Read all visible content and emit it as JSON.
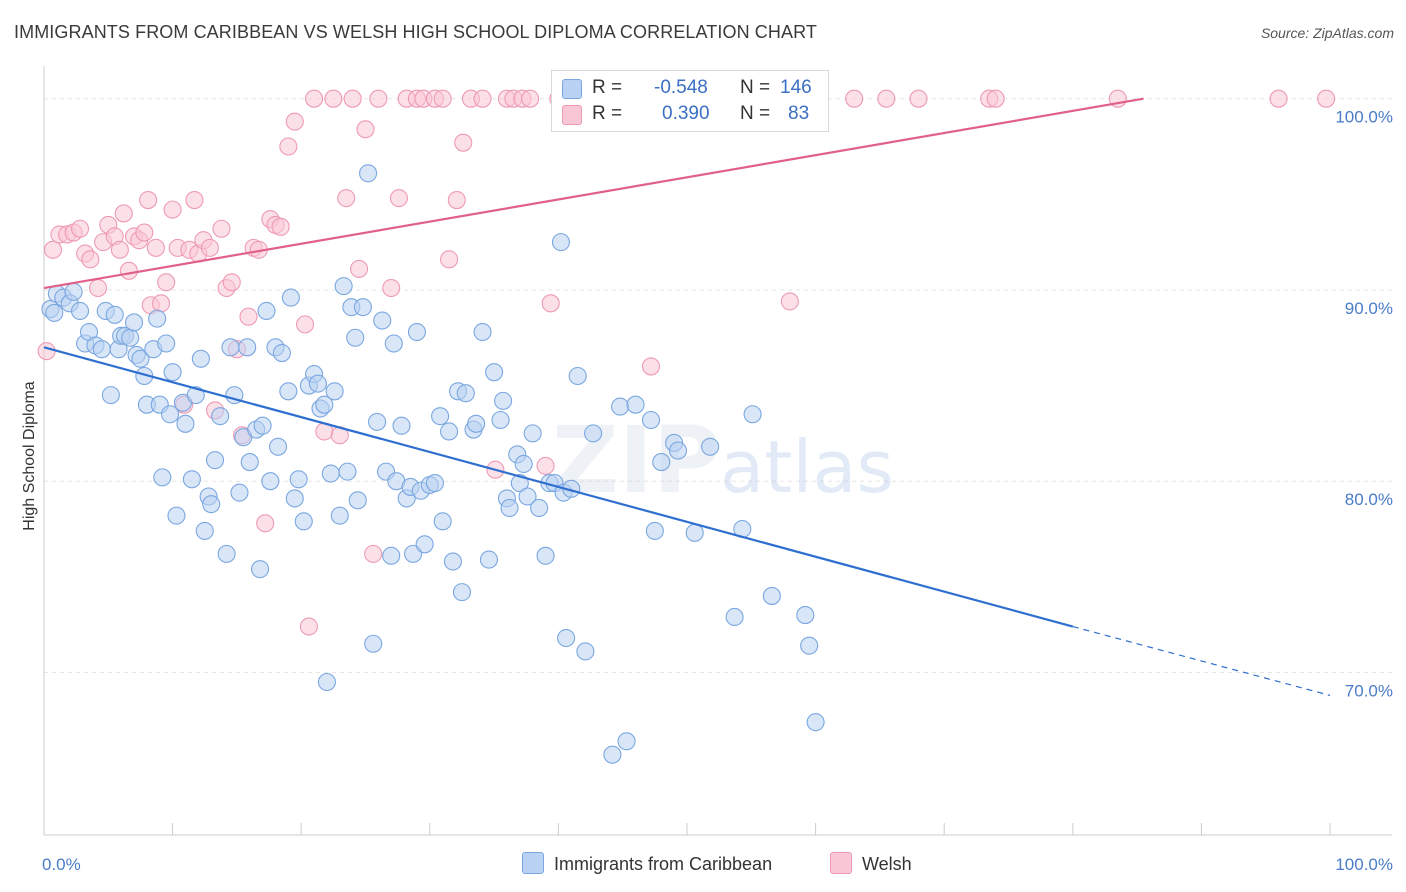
{
  "header": {
    "title": "IMMIGRANTS FROM CARIBBEAN VS WELSH HIGH SCHOOL DIPLOMA CORRELATION CHART",
    "source": "Source: ZipAtlas.com"
  },
  "watermark": {
    "zip": "ZIP",
    "atlas": "atlas"
  },
  "legend": {
    "rows": [
      {
        "r_label": "R =",
        "r_value": "-0.548",
        "n_label": "N =",
        "n_value": "146",
        "color": "#aac8f0"
      },
      {
        "r_label": "R =",
        "r_value": "0.390",
        "n_label": "N =",
        "n_value": "83",
        "color": "#f7b8cb"
      }
    ]
  },
  "chart_data": {
    "type": "scatter",
    "title": "IMMIGRANTS FROM CARIBBEAN VS WELSH HIGH SCHOOL DIPLOMA CORRELATION CHART",
    "xlabel": "",
    "ylabel": "High School Diploma",
    "xlim": [
      0,
      100
    ],
    "ylim": [
      61.5,
      101.5
    ],
    "x_tick_labels": [
      "0.0%",
      "100.0%"
    ],
    "y_ticks": [
      {
        "value": 70,
        "label": "70.0%"
      },
      {
        "value": 80,
        "label": "80.0%"
      },
      {
        "value": 90,
        "label": "90.0%"
      },
      {
        "value": 100,
        "label": "100.0%"
      }
    ],
    "grid": true,
    "legend_position": "bottom",
    "series": [
      {
        "name": "Immigrants from Caribbean",
        "color": "#7aa7e0",
        "fill": "#b9d2f3",
        "trend": {
          "x": [
            0,
            80
          ],
          "y": [
            87.0,
            72.4
          ],
          "dashed_to": [
            100,
            68.8
          ],
          "color": "#2f6fd0"
        },
        "points": [
          [
            0.5,
            89.0
          ],
          [
            0.8,
            88.8
          ],
          [
            1.0,
            89.8
          ],
          [
            1.5,
            89.6
          ],
          [
            2.0,
            89.3
          ],
          [
            2.3,
            89.9
          ],
          [
            2.8,
            88.9
          ],
          [
            3.2,
            87.2
          ],
          [
            3.5,
            87.8
          ],
          [
            4.0,
            87.1
          ],
          [
            4.5,
            86.9
          ],
          [
            4.8,
            88.9
          ],
          [
            5.2,
            84.5
          ],
          [
            5.5,
            88.7
          ],
          [
            5.8,
            86.9
          ],
          [
            6.0,
            87.6
          ],
          [
            6.3,
            87.6
          ],
          [
            6.7,
            87.5
          ],
          [
            7.0,
            88.3
          ],
          [
            7.2,
            86.6
          ],
          [
            7.5,
            86.4
          ],
          [
            7.8,
            85.5
          ],
          [
            8.0,
            84.0
          ],
          [
            8.5,
            86.9
          ],
          [
            8.8,
            88.5
          ],
          [
            9.0,
            84.0
          ],
          [
            9.2,
            80.2
          ],
          [
            9.5,
            87.2
          ],
          [
            9.8,
            83.5
          ],
          [
            10.0,
            85.7
          ],
          [
            10.3,
            78.2
          ],
          [
            10.8,
            84.1
          ],
          [
            11.0,
            83.0
          ],
          [
            11.5,
            80.1
          ],
          [
            11.8,
            84.5
          ],
          [
            12.2,
            86.4
          ],
          [
            12.5,
            77.4
          ],
          [
            12.8,
            79.2
          ],
          [
            13.0,
            78.8
          ],
          [
            13.3,
            81.1
          ],
          [
            13.7,
            83.4
          ],
          [
            14.2,
            76.2
          ],
          [
            14.5,
            87.0
          ],
          [
            14.8,
            84.5
          ],
          [
            15.2,
            79.4
          ],
          [
            15.5,
            82.3
          ],
          [
            15.8,
            87.0
          ],
          [
            16.0,
            81.0
          ],
          [
            16.5,
            82.7
          ],
          [
            16.8,
            75.4
          ],
          [
            17.0,
            82.9
          ],
          [
            17.3,
            88.9
          ],
          [
            17.6,
            80.0
          ],
          [
            18.0,
            87.0
          ],
          [
            18.2,
            81.8
          ],
          [
            18.5,
            86.7
          ],
          [
            19.0,
            84.7
          ],
          [
            19.2,
            89.6
          ],
          [
            19.5,
            79.1
          ],
          [
            19.8,
            80.1
          ],
          [
            20.2,
            77.9
          ],
          [
            20.6,
            85.0
          ],
          [
            21.0,
            85.6
          ],
          [
            21.3,
            85.1
          ],
          [
            21.5,
            83.8
          ],
          [
            21.8,
            84.0
          ],
          [
            22.0,
            69.5
          ],
          [
            22.3,
            80.4
          ],
          [
            22.6,
            84.7
          ],
          [
            23.0,
            78.2
          ],
          [
            23.3,
            90.2
          ],
          [
            23.6,
            80.5
          ],
          [
            23.9,
            89.1
          ],
          [
            24.2,
            87.5
          ],
          [
            24.4,
            79.0
          ],
          [
            24.8,
            89.1
          ],
          [
            25.2,
            96.1
          ],
          [
            25.6,
            71.5
          ],
          [
            25.9,
            83.1
          ],
          [
            26.3,
            88.4
          ],
          [
            26.6,
            80.5
          ],
          [
            27.0,
            76.1
          ],
          [
            27.2,
            87.2
          ],
          [
            27.4,
            80.0
          ],
          [
            27.8,
            82.9
          ],
          [
            28.2,
            79.1
          ],
          [
            28.5,
            79.7
          ],
          [
            28.7,
            76.2
          ],
          [
            29.0,
            87.8
          ],
          [
            29.3,
            79.5
          ],
          [
            29.6,
            76.7
          ],
          [
            30.0,
            79.8
          ],
          [
            30.4,
            79.9
          ],
          [
            30.8,
            83.4
          ],
          [
            31.0,
            77.9
          ],
          [
            31.5,
            82.6
          ],
          [
            31.8,
            75.8
          ],
          [
            32.2,
            84.7
          ],
          [
            32.5,
            74.2
          ],
          [
            32.8,
            84.6
          ],
          [
            33.4,
            82.7
          ],
          [
            33.6,
            83.0
          ],
          [
            34.1,
            87.8
          ],
          [
            34.6,
            75.9
          ],
          [
            35.0,
            85.7
          ],
          [
            35.5,
            83.2
          ],
          [
            35.7,
            84.2
          ],
          [
            36.0,
            79.1
          ],
          [
            36.2,
            78.6
          ],
          [
            36.8,
            81.4
          ],
          [
            37.0,
            79.9
          ],
          [
            37.3,
            80.9
          ],
          [
            37.6,
            79.2
          ],
          [
            38.0,
            82.5
          ],
          [
            38.5,
            78.6
          ],
          [
            39.0,
            76.1
          ],
          [
            39.3,
            79.9
          ],
          [
            39.7,
            79.9
          ],
          [
            40.2,
            92.5
          ],
          [
            40.4,
            79.4
          ],
          [
            40.6,
            71.8
          ],
          [
            41.0,
            79.6
          ],
          [
            41.5,
            85.5
          ],
          [
            42.1,
            71.1
          ],
          [
            42.7,
            82.5
          ],
          [
            44.2,
            65.7
          ],
          [
            44.8,
            83.9
          ],
          [
            45.3,
            66.4
          ],
          [
            46.0,
            84.0
          ],
          [
            47.2,
            83.2
          ],
          [
            47.5,
            77.4
          ],
          [
            48.0,
            81.0
          ],
          [
            49.0,
            82.0
          ],
          [
            49.3,
            81.6
          ],
          [
            50.6,
            77.3
          ],
          [
            51.8,
            81.8
          ],
          [
            53.7,
            72.9
          ],
          [
            54.3,
            77.5
          ],
          [
            55.1,
            83.5
          ],
          [
            56.6,
            74.0
          ],
          [
            59.2,
            73.0
          ],
          [
            59.5,
            71.4
          ],
          [
            60.0,
            67.4
          ]
        ]
      },
      {
        "name": "Welsh",
        "color": "#ee9ab3",
        "fill": "#f9c6d5",
        "trend": {
          "x": [
            0,
            85.5
          ],
          "y": [
            90.1,
            100.0
          ],
          "color": "#e0608a"
        },
        "points": [
          [
            0.2,
            86.8
          ],
          [
            0.7,
            92.1
          ],
          [
            1.2,
            92.9
          ],
          [
            1.8,
            92.9
          ],
          [
            2.3,
            93.0
          ],
          [
            2.8,
            93.2
          ],
          [
            3.2,
            91.9
          ],
          [
            3.6,
            91.6
          ],
          [
            4.2,
            90.1
          ],
          [
            4.6,
            92.5
          ],
          [
            5.0,
            93.4
          ],
          [
            5.5,
            92.8
          ],
          [
            5.9,
            92.1
          ],
          [
            6.2,
            94.0
          ],
          [
            6.6,
            91.0
          ],
          [
            7.0,
            92.8
          ],
          [
            7.4,
            92.6
          ],
          [
            7.8,
            93.0
          ],
          [
            8.1,
            94.7
          ],
          [
            8.3,
            89.2
          ],
          [
            8.7,
            92.2
          ],
          [
            9.1,
            89.3
          ],
          [
            9.5,
            90.4
          ],
          [
            10.0,
            94.2
          ],
          [
            10.4,
            92.2
          ],
          [
            10.9,
            84.0
          ],
          [
            11.3,
            92.1
          ],
          [
            11.7,
            94.7
          ],
          [
            12.0,
            91.9
          ],
          [
            12.4,
            92.6
          ],
          [
            12.9,
            92.2
          ],
          [
            13.3,
            83.7
          ],
          [
            13.8,
            93.2
          ],
          [
            14.2,
            90.1
          ],
          [
            14.6,
            90.4
          ],
          [
            15.0,
            86.9
          ],
          [
            15.4,
            82.4
          ],
          [
            15.9,
            88.6
          ],
          [
            16.3,
            92.2
          ],
          [
            16.7,
            92.1
          ],
          [
            17.2,
            77.8
          ],
          [
            17.6,
            93.7
          ],
          [
            18.0,
            93.4
          ],
          [
            18.4,
            93.3
          ],
          [
            19.0,
            97.5
          ],
          [
            19.5,
            98.8
          ],
          [
            20.3,
            88.2
          ],
          [
            20.6,
            72.4
          ],
          [
            21.0,
            100.0
          ],
          [
            21.8,
            82.6
          ],
          [
            22.5,
            100.0
          ],
          [
            23.0,
            82.4
          ],
          [
            23.5,
            94.8
          ],
          [
            24.0,
            100.0
          ],
          [
            24.5,
            91.1
          ],
          [
            25.0,
            98.4
          ],
          [
            25.6,
            76.2
          ],
          [
            26.0,
            100.0
          ],
          [
            27.0,
            90.1
          ],
          [
            27.6,
            94.8
          ],
          [
            28.2,
            100.0
          ],
          [
            29.0,
            100.0
          ],
          [
            29.5,
            100.0
          ],
          [
            30.4,
            100.0
          ],
          [
            31.0,
            100.0
          ],
          [
            31.5,
            91.6
          ],
          [
            32.1,
            94.7
          ],
          [
            32.6,
            97.7
          ],
          [
            33.2,
            100.0
          ],
          [
            34.1,
            100.0
          ],
          [
            35.1,
            80.6
          ],
          [
            36.0,
            100.0
          ],
          [
            36.5,
            100.0
          ],
          [
            37.2,
            100.0
          ],
          [
            37.8,
            100.0
          ],
          [
            39.0,
            80.8
          ],
          [
            39.4,
            89.3
          ],
          [
            40.0,
            100.0
          ],
          [
            40.8,
            100.0
          ],
          [
            42.2,
            100.0
          ],
          [
            47.2,
            86.0
          ],
          [
            58.0,
            89.4
          ],
          [
            59.2,
            100.0
          ],
          [
            63.0,
            100.0
          ],
          [
            65.5,
            100.0
          ],
          [
            68.0,
            100.0
          ],
          [
            73.5,
            100.0
          ],
          [
            74.0,
            100.0
          ],
          [
            83.5,
            100.0
          ],
          [
            96.0,
            100.0
          ],
          [
            99.7,
            100.0
          ]
        ]
      }
    ]
  },
  "bottom_legend": [
    {
      "label": "Immigrants from Caribbean",
      "color": "#b9d2f3"
    },
    {
      "label": "Welsh",
      "color": "#f9c6d5"
    }
  ]
}
